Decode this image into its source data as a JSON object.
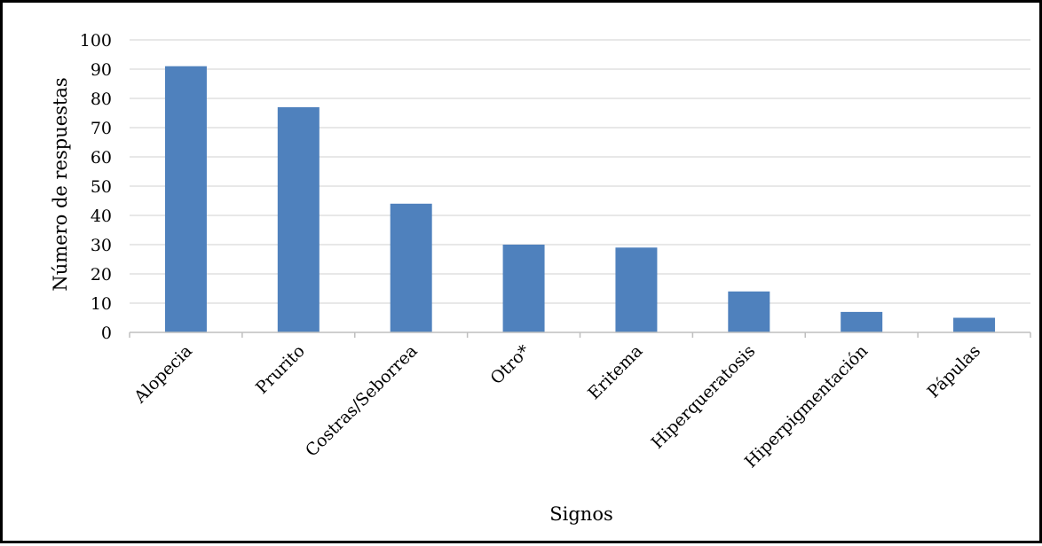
{
  "chart_data": {
    "type": "bar",
    "title": "",
    "xlabel": "Signos",
    "ylabel": "Número de respuestas",
    "categories": [
      "Alopecia",
      "Prurito",
      "Costras/Seborrea",
      "Otro*",
      "Eritema",
      "Hiperqueratosis",
      "Hiperpigmentación",
      "Pápulas"
    ],
    "values": [
      91,
      77,
      44,
      30,
      29,
      14,
      7,
      5
    ],
    "ylim": [
      0,
      100
    ],
    "yticks": [
      0,
      10,
      20,
      30,
      40,
      50,
      60,
      70,
      80,
      90,
      100
    ],
    "grid": true,
    "legend": "none",
    "bar_color": "#4f81bd",
    "grid_color": "#d9d9d9"
  }
}
